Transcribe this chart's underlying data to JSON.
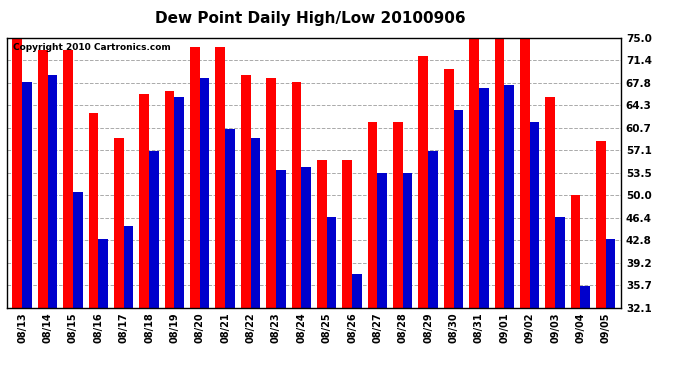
{
  "title": "Dew Point Daily High/Low 20100906",
  "copyright": "Copyright 2010 Cartronics.com",
  "dates": [
    "08/13",
    "08/14",
    "08/15",
    "08/16",
    "08/17",
    "08/18",
    "08/19",
    "08/20",
    "08/21",
    "08/22",
    "08/23",
    "08/24",
    "08/25",
    "08/26",
    "08/27",
    "08/28",
    "08/29",
    "08/30",
    "08/31",
    "09/01",
    "09/02",
    "09/03",
    "09/04",
    "09/05"
  ],
  "high": [
    75.0,
    73.0,
    73.0,
    63.0,
    59.0,
    66.0,
    66.5,
    73.5,
    73.5,
    69.0,
    68.5,
    68.0,
    55.5,
    55.5,
    61.5,
    61.5,
    72.0,
    70.0,
    75.0,
    75.0,
    75.0,
    65.5,
    50.0,
    58.5
  ],
  "low": [
    68.0,
    69.0,
    50.5,
    43.0,
    45.0,
    57.0,
    65.5,
    68.5,
    60.5,
    59.0,
    54.0,
    54.5,
    46.5,
    37.5,
    53.5,
    53.5,
    57.0,
    63.5,
    67.0,
    67.5,
    61.5,
    46.5,
    35.5,
    43.0
  ],
  "high_color": "#ff0000",
  "low_color": "#0000cc",
  "bg_color": "#ffffff",
  "plot_bg_color": "#ffffff",
  "grid_color": "#aaaaaa",
  "yticks": [
    32.1,
    35.7,
    39.2,
    42.8,
    46.4,
    50.0,
    53.5,
    57.1,
    60.7,
    64.3,
    67.8,
    71.4,
    75.0
  ],
  "ymin": 32.1,
  "ymax": 75.0,
  "bar_width": 0.38
}
